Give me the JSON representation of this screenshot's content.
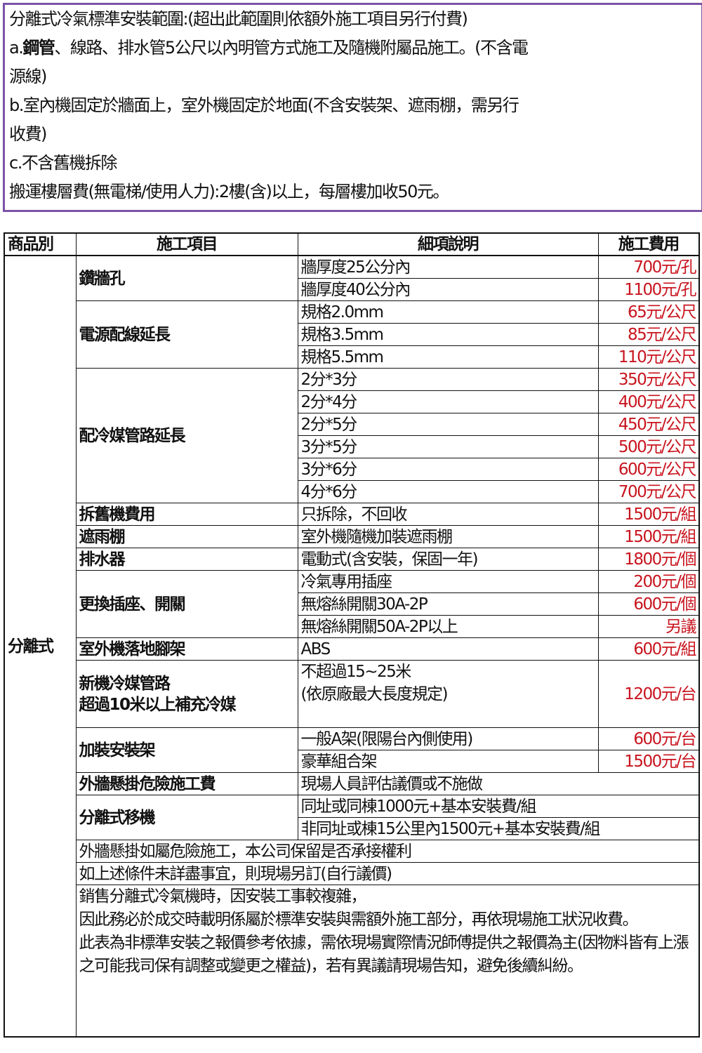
{
  "scope": {
    "title": "分離式冷氣標準安裝範圍:(超出此範圍則依額外施工項目另行付費)",
    "a_prefix": "a.",
    "a_bold": "鋼管",
    "a_text": "、線路、排水管5公尺以內明管方式施工及隨機附屬品施工。(不含電",
    "a_cont": "源線)",
    "b_text": "b.室內機固定於牆面上，室外機固定於地面(不含安裝架、遮雨棚，需另行",
    "b_cont": "收費)",
    "c_text": "c.不含舊機拆除",
    "floor_fee": "搬運樓層費(無電梯/使用人力):2樓(含)以上，每層樓加收50元。"
  },
  "table": {
    "headers": [
      "商品別",
      "施工項目",
      "細項說明",
      "施工費用"
    ],
    "category": "分離式",
    "groups": [
      {
        "item": "鑽牆孔",
        "rows": [
          {
            "desc": "牆厚度25公分內",
            "price": "700元/孔"
          },
          {
            "desc": "牆厚度40公分內",
            "price": "1100元/孔"
          }
        ]
      },
      {
        "item": "電源配線延長",
        "rows": [
          {
            "desc": "規格2.0mm",
            "price": "65元/公尺"
          },
          {
            "desc": "規格3.5mm",
            "price": "85元/公尺"
          },
          {
            "desc": "規格5.5mm",
            "price": "110元/公尺"
          }
        ]
      },
      {
        "item": "配冷媒管路延長",
        "rows": [
          {
            "desc": "2分*3分",
            "price": "350元/公尺"
          },
          {
            "desc": "2分*4分",
            "price": "400元/公尺"
          },
          {
            "desc": "2分*5分",
            "price": "450元/公尺"
          },
          {
            "desc": "3分*5分",
            "price": "500元/公尺"
          },
          {
            "desc": "3分*6分",
            "price": "600元/公尺"
          },
          {
            "desc": "4分*6分",
            "price": "700元/公尺"
          }
        ]
      },
      {
        "item": "拆舊機費用",
        "rows": [
          {
            "desc": "只拆除，不回收",
            "price": "1500元/組"
          }
        ]
      },
      {
        "item": "遮雨棚",
        "rows": [
          {
            "desc": "室外機隨機加裝遮雨棚",
            "price": "1500元/組"
          }
        ]
      },
      {
        "item": "排水器",
        "rows": [
          {
            "desc": "電動式(含安裝，保固一年)",
            "price": "1800元/個"
          }
        ]
      },
      {
        "item": "更換插座、開關",
        "rows": [
          {
            "desc": "冷氣專用插座",
            "price": "200元/個"
          },
          {
            "desc": "無熔絲開關30A-2P",
            "price": "600元/個"
          },
          {
            "desc": "無熔絲開關50A-2P以上",
            "price": "另議"
          }
        ]
      },
      {
        "item": "室外機落地腳架",
        "rows": [
          {
            "desc": "ABS",
            "price": "600元/組"
          }
        ]
      },
      {
        "item": "新機冷媒管路\n超過10米以上補充冷媒",
        "rows": [
          {
            "desc": "不超過15~25米\n(依原廠最大長度規定)",
            "price": "1200元/台"
          }
        ]
      },
      {
        "item": "加裝安裝架",
        "rows": [
          {
            "desc": "一般A架(限陽台內側使用)",
            "price": "600元/台"
          },
          {
            "desc": "豪華組合架",
            "price": "1500元/台"
          }
        ]
      },
      {
        "item": "外牆懸掛危險施工費",
        "rows": [
          {
            "desc": "現場人員評估議價或不施做"
          }
        ]
      },
      {
        "item": "分離式移機",
        "rows": [
          {
            "desc": "同址或同棟1000元+基本安裝費/組"
          },
          {
            "desc": "非同址或棟15公里內1500元+基本安裝費/組"
          }
        ]
      }
    ],
    "notes": [
      "外牆懸掛如屬危險施工，本公司保留是否承接權利",
      "如上述條件未詳盡事宜，則現場另訂(自行議價)"
    ],
    "final_note": [
      "銷售分離式冷氣機時，因安裝工事較複雜，",
      "因此務必於成交時載明係屬於標準安裝與需額外施工部分，再依現場施工狀況收費。",
      "此表為非標準安裝之報價參考依據，需依現場實際情況師傅提供之報價為主(因物料皆有上漲之可能我司保有調整或變更之權益)，若有異議請現場告知，避免後續糾紛。"
    ],
    "price_color": "#c8141e"
  }
}
